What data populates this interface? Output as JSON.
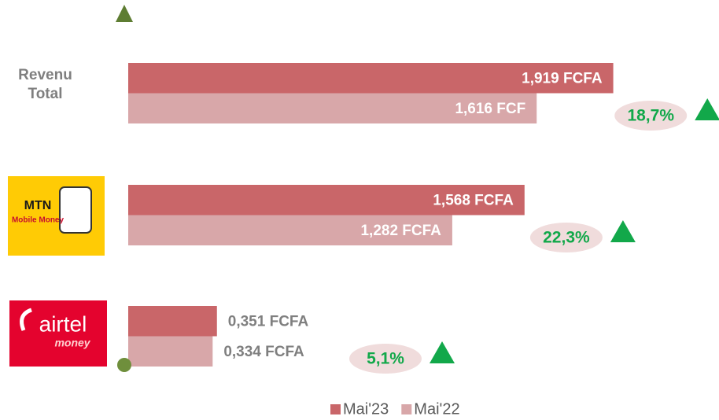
{
  "chart_data": {
    "type": "bar",
    "orientation": "horizontal",
    "categories": [
      "Revenu Total",
      "MTN",
      "airtel"
    ],
    "category_sublabels": [
      null,
      "Mobile Money",
      "money"
    ],
    "series": [
      {
        "name": "Mai'23",
        "color": "#c96669",
        "values": [
          1.919,
          1.568,
          0.351
        ],
        "value_labels": [
          "1,919 FCFA",
          "1,568 FCFA",
          "0,351 FCFA"
        ]
      },
      {
        "name": "Mai'22",
        "color": "#d8a7a9",
        "values": [
          1.616,
          1.282,
          0.334
        ],
        "value_labels": [
          "1,616 FCF",
          "1,282 FCFA",
          "0,334 FCFA"
        ]
      }
    ],
    "growth": {
      "values": [
        18.7,
        22.3,
        5.1
      ],
      "value_labels": [
        "18,7%",
        "22,3%",
        "5,1%"
      ],
      "color": "#12a84a"
    },
    "xlim": [
      0,
      2.3
    ],
    "legend": "bottom"
  }
}
